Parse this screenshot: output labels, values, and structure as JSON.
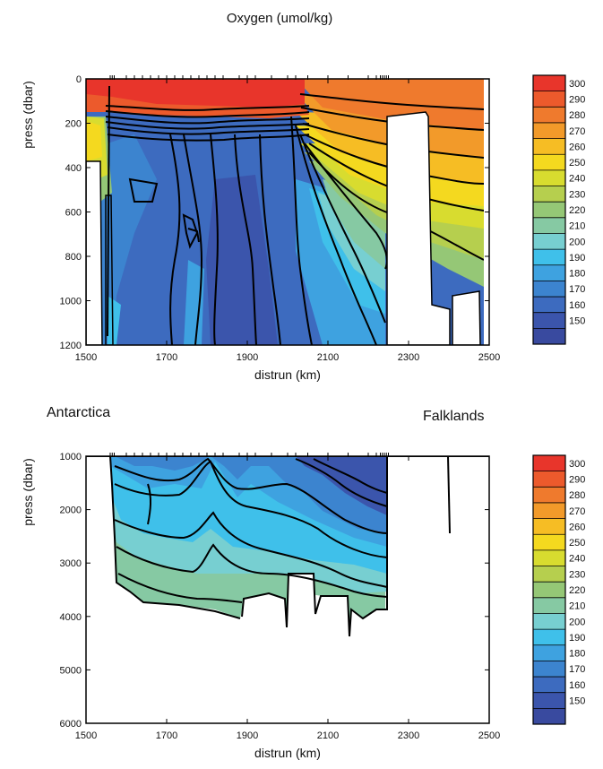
{
  "figure": {
    "title": "Oxygen (umol/kg)",
    "left_label": "Antarctica",
    "right_label": "Falklands"
  },
  "colorbar": {
    "ticks": [
      300,
      290,
      280,
      270,
      260,
      250,
      240,
      230,
      220,
      210,
      200,
      190,
      180,
      170,
      160,
      150
    ],
    "colors": [
      "#e8352b",
      "#ec5a2c",
      "#ef7a2d",
      "#f29a2a",
      "#f6bd24",
      "#f4d91f",
      "#d8dc2f",
      "#b6cf4e",
      "#95c776",
      "#86c9a3",
      "#77cfd1",
      "#3fc0ea",
      "#3ea2e0",
      "#3c84cf",
      "#3d6bbf",
      "#3b55ac",
      "#394a9f"
    ]
  },
  "chart_data": [
    {
      "type": "heatmap",
      "title": "Oxygen (umol/kg)",
      "xlabel": "distrun (km)",
      "ylabel": "press  (dbar)",
      "xlim": [
        1500,
        2500
      ],
      "ylim": [
        1200,
        0
      ],
      "y_inverted": true,
      "x_ticks": [
        1500,
        1700,
        1900,
        2100,
        2300,
        2500
      ],
      "y_ticks": [
        0,
        200,
        400,
        600,
        800,
        1000,
        1200
      ],
      "colorbar_ticks": [
        300,
        290,
        280,
        270,
        260,
        250,
        240,
        230,
        220,
        210,
        200,
        190,
        180,
        170,
        160,
        150
      ],
      "sections": [
        {
          "x": [
            1500,
            2000
          ],
          "depth_range": [
            0,
            150
          ],
          "oxygen_range": [
            290,
            310
          ]
        },
        {
          "x": [
            2030,
            2470
          ],
          "depth_range": [
            0,
            450
          ],
          "oxygen_range": [
            260,
            290
          ]
        },
        {
          "x": [
            1560,
            2030
          ],
          "depth_range": [
            200,
            1200
          ],
          "oxygen_range": [
            150,
            170
          ]
        },
        {
          "x": [
            2030,
            2250
          ],
          "depth_range": [
            450,
            1200
          ],
          "oxygen_range": [
            170,
            250
          ]
        }
      ]
    },
    {
      "type": "heatmap",
      "title": "",
      "xlabel": "distrun (km)",
      "ylabel": "press  (dbar)",
      "xlim": [
        1500,
        2500
      ],
      "ylim": [
        6000,
        1000
      ],
      "y_inverted": true,
      "x_ticks": [
        1500,
        1700,
        1900,
        2100,
        2300,
        2500
      ],
      "y_ticks": [
        1000,
        2000,
        3000,
        4000,
        5000,
        6000
      ],
      "colorbar_ticks": [
        300,
        290,
        280,
        270,
        260,
        250,
        240,
        230,
        220,
        210,
        200,
        190,
        180,
        170,
        160,
        150
      ],
      "sections": [
        {
          "x": [
            1560,
            2250
          ],
          "depth_range": [
            1000,
            2000
          ],
          "oxygen_range": [
            160,
            180
          ]
        },
        {
          "x": [
            1560,
            2200
          ],
          "depth_range": [
            2000,
            3000
          ],
          "oxygen_range": [
            190,
            200
          ]
        },
        {
          "x": [
            1560,
            2050
          ],
          "depth_range": [
            3000,
            3900
          ],
          "oxygen_range": [
            210,
            230
          ]
        }
      ],
      "annotations": [
        "Antarctica",
        "Falklands"
      ]
    }
  ]
}
